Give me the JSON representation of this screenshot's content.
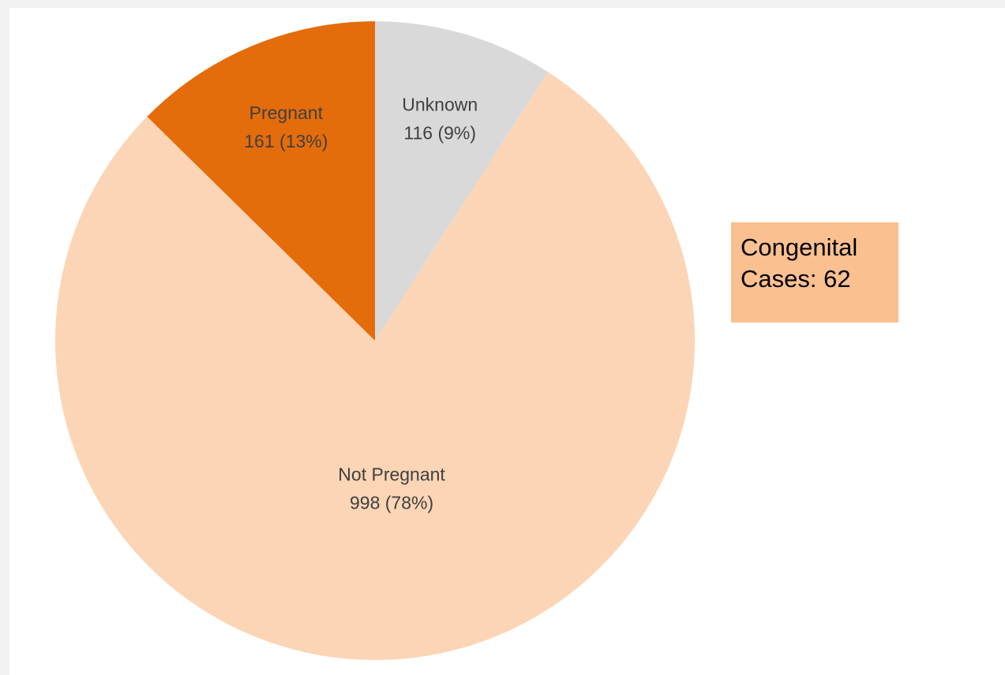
{
  "chart_data": {
    "type": "pie",
    "categories": [
      "Unknown",
      "Not Pregnant",
      "Pregnant"
    ],
    "values": [
      116,
      998,
      161
    ],
    "value_labels": [
      "116 (9%)",
      "998 (78%)",
      "161 (13%)"
    ],
    "colors": [
      "#d9d9d9",
      "#fbd5b5",
      "#e46c0a"
    ],
    "annotation": "Congenital Cases: 62"
  }
}
